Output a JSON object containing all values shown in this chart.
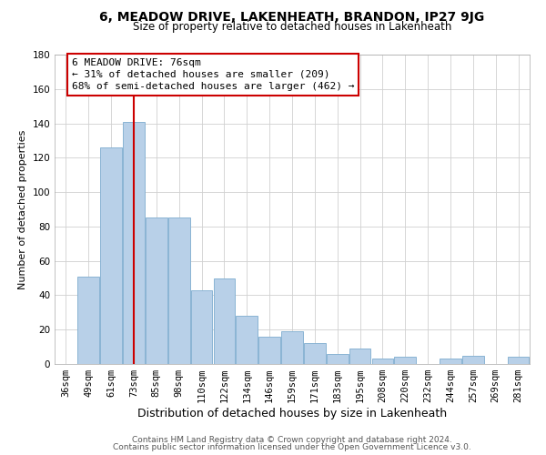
{
  "title": "6, MEADOW DRIVE, LAKENHEATH, BRANDON, IP27 9JG",
  "subtitle": "Size of property relative to detached houses in Lakenheath",
  "xlabel": "Distribution of detached houses by size in Lakenheath",
  "ylabel": "Number of detached properties",
  "bar_labels": [
    "36sqm",
    "49sqm",
    "61sqm",
    "73sqm",
    "85sqm",
    "98sqm",
    "110sqm",
    "122sqm",
    "134sqm",
    "146sqm",
    "159sqm",
    "171sqm",
    "183sqm",
    "195sqm",
    "208sqm",
    "220sqm",
    "232sqm",
    "244sqm",
    "257sqm",
    "269sqm",
    "281sqm"
  ],
  "bar_values": [
    0,
    51,
    126,
    141,
    85,
    85,
    43,
    50,
    28,
    16,
    19,
    12,
    6,
    9,
    3,
    4,
    0,
    3,
    5,
    0,
    4
  ],
  "bar_color": "#b8d0e8",
  "bar_edge_color": "#8ab4d4",
  "vline_x": 3,
  "vline_color": "#cc0000",
  "ylim": [
    0,
    180
  ],
  "yticks": [
    0,
    20,
    40,
    60,
    80,
    100,
    120,
    140,
    160,
    180
  ],
  "annotation_title": "6 MEADOW DRIVE: 76sqm",
  "annotation_line1": "← 31% of detached houses are smaller (209)",
  "annotation_line2": "68% of semi-detached houses are larger (462) →",
  "footer1": "Contains HM Land Registry data © Crown copyright and database right 2024.",
  "footer2": "Contains public sector information licensed under the Open Government Licence v3.0.",
  "bg_color": "#ffffff",
  "grid_color": "#d0d0d0",
  "title_fontsize": 10,
  "subtitle_fontsize": 8.5,
  "xlabel_fontsize": 9,
  "ylabel_fontsize": 8,
  "tick_fontsize": 7.5,
  "footer_fontsize": 6.5,
  "ann_fontsize": 8
}
